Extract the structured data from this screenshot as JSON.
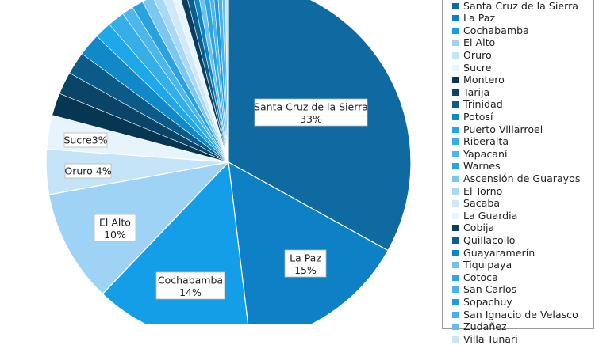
{
  "chart_data": {
    "type": "pie",
    "start_angle_deg": -90,
    "direction": "clockwise",
    "slices": [
      {
        "label": "Santa Cruz de la Sierra",
        "value": 33,
        "value_label": "33%",
        "color": "#0e6aa0",
        "show_label": true
      },
      {
        "label": "La Paz",
        "value": 15,
        "value_label": "15%",
        "color": "#0d80c6",
        "show_label": true
      },
      {
        "label": "Cochabamba",
        "value": 14,
        "value_label": "14%",
        "color": "#149ee8",
        "show_label": true
      },
      {
        "label": "El Alto",
        "value": 10,
        "value_label": "10%",
        "color": "#9fd3f5",
        "show_label": true
      },
      {
        "label": "Oruro",
        "value": 4,
        "value_label": "4%",
        "color": "#c6e4f8",
        "show_label": true
      },
      {
        "label": "Sucre",
        "value": 3,
        "value_label": "3%",
        "color": "#e7f4fc",
        "show_label": true
      },
      {
        "label": "Montero",
        "value": 2,
        "color": "#073653"
      },
      {
        "label": "Tarija",
        "value": 2,
        "color": "#0a4466"
      },
      {
        "label": "Trinidad",
        "value": 2,
        "color": "#0b5a88"
      },
      {
        "label": "Potosí",
        "value": 2,
        "color": "#1188c8"
      },
      {
        "label": "Puerto Villarroel",
        "value": 1.5,
        "color": "#1ea8ea"
      },
      {
        "label": "Riberalta",
        "value": 1.5,
        "color": "#36aee8"
      },
      {
        "label": "Yapacaní",
        "value": 1,
        "color": "#4cb7ea"
      },
      {
        "label": "Warnes",
        "value": 1,
        "color": "#2aa2df"
      },
      {
        "label": "Ascensión de Guarayos",
        "value": 1,
        "color": "#7cc7f0"
      },
      {
        "label": "El Torno",
        "value": 0.8,
        "color": "#a9d8f4"
      },
      {
        "label": "Sacaba",
        "value": 0.8,
        "color": "#cfe9f9"
      },
      {
        "label": "La Guardia",
        "value": 0.7,
        "color": "#e9f5fd"
      },
      {
        "label": "Cobija",
        "value": 0.6,
        "color": "#0a3d5e"
      },
      {
        "label": "Quillacollo",
        "value": 0.6,
        "color": "#0b5e8d"
      },
      {
        "label": "Guayaramerín",
        "value": 0.5,
        "color": "#0e86c6"
      },
      {
        "label": "Tiquipaya",
        "value": 0.5,
        "color": "#6fc1ec"
      },
      {
        "label": "Cotoca",
        "value": 0.5,
        "color": "#2ba5e4"
      },
      {
        "label": "San Carlos",
        "value": 0.4,
        "color": "#4cb3ea"
      },
      {
        "label": "Sopachuy",
        "value": 0.4,
        "color": "#1e9bdf"
      },
      {
        "label": "San Ignacio de Velasco",
        "value": 0.4,
        "color": "#49b1e9"
      },
      {
        "label": "Zudañez",
        "value": 0.3,
        "color": "#64bdec"
      },
      {
        "label": "Villa Tunari",
        "value": 0.3,
        "color": "#c9e6f8"
      }
    ]
  }
}
